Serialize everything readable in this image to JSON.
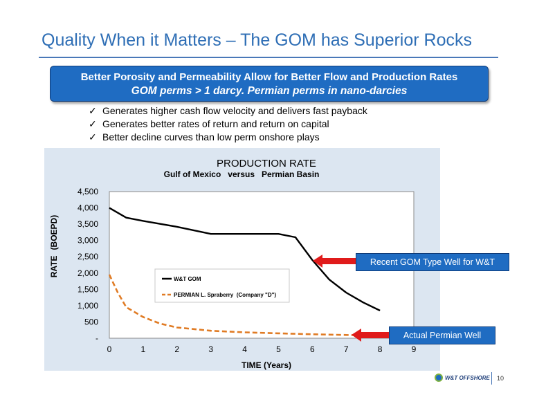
{
  "slide": {
    "title": "Quality When it Matters – The GOM has Superior Rocks",
    "banner_line1": "Better Porosity and Permeability Allow for Better Flow and Production Rates",
    "banner_line2": "GOM perms > 1 darcy.  Permian perms in nano-darcies",
    "bullets": [
      "Generates higher cash flow velocity and delivers fast payback",
      "Generates better rates of return and return on capital",
      "Better decline curves than low perm onshore plays"
    ],
    "check_glyph": "✓",
    "callout_gom": "Recent GOM Type Well for W&T",
    "callout_permian": "Actual Permian Well",
    "logo_text": "W&T OFFSHORE",
    "page_number": "10"
  },
  "colors": {
    "title": "#2e6eb5",
    "banner": "#1f6cc2",
    "chart_background": "#dce6f1",
    "gom_series": "#000000",
    "permian_series": "#e07b24",
    "arrow": "#e01b1b"
  },
  "chart_data": {
    "type": "line",
    "title": "PRODUCTION RATE",
    "subtitle": "Gulf of Mexico   versus   Permian Basin",
    "xlabel_bold": "TIME",
    "xlabel_rest": " (Years)",
    "ylabel_bold": "RATE",
    "ylabel_rest": "(BOEPD)",
    "xlim": [
      0,
      9
    ],
    "ylim": [
      0,
      4500
    ],
    "x_ticks": [
      "0",
      "1",
      "2",
      "3",
      "4",
      "5",
      "6",
      "7",
      "8",
      "9"
    ],
    "y_ticks": [
      {
        "value": 0,
        "label": "-"
      },
      {
        "value": 500,
        "label": "500"
      },
      {
        "value": 1000,
        "label": "1,000"
      },
      {
        "value": 1500,
        "label": "1,500"
      },
      {
        "value": 2000,
        "label": "2,000"
      },
      {
        "value": 2500,
        "label": "2,500"
      },
      {
        "value": 3000,
        "label": "3,000"
      },
      {
        "value": 3500,
        "label": "3,500"
      },
      {
        "value": 4000,
        "label": "4,000"
      },
      {
        "value": 4500,
        "label": "4,500"
      }
    ],
    "grid": true,
    "legend_position": "center-left",
    "series": [
      {
        "name": "W&T GOM",
        "style": "solid",
        "color": "#000000",
        "points": [
          [
            0,
            4000
          ],
          [
            0.5,
            3700
          ],
          [
            1,
            3600
          ],
          [
            2,
            3420
          ],
          [
            3,
            3200
          ],
          [
            4,
            3200
          ],
          [
            5,
            3200
          ],
          [
            5.5,
            3100
          ],
          [
            6,
            2400
          ],
          [
            6.5,
            1800
          ],
          [
            7,
            1400
          ],
          [
            7.5,
            1100
          ],
          [
            8,
            850
          ]
        ]
      },
      {
        "name": "PERMIAN L. Spraberry  (Company \"D\")",
        "style": "dashed",
        "color": "#e07b24",
        "points": [
          [
            0,
            1950
          ],
          [
            0.25,
            1400
          ],
          [
            0.5,
            950
          ],
          [
            1,
            650
          ],
          [
            1.5,
            450
          ],
          [
            2,
            330
          ],
          [
            2.5,
            280
          ],
          [
            3,
            230
          ],
          [
            4,
            180
          ],
          [
            5,
            150
          ],
          [
            6,
            120
          ],
          [
            7,
            100
          ],
          [
            7.5,
            90
          ]
        ]
      }
    ]
  }
}
